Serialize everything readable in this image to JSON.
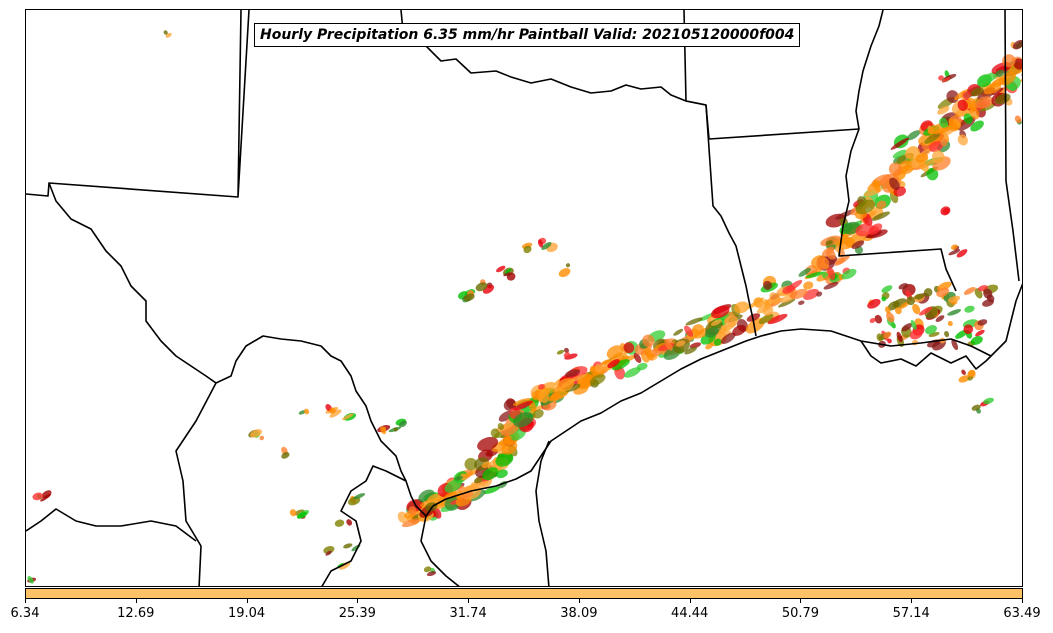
{
  "title": "Hourly Precipitation 6.35 mm/hr Paintball Valid: 202105120000f004",
  "colorbar": {
    "color": "#ffc266",
    "ticks": [
      "6.34",
      "12.69",
      "19.04",
      "25.39",
      "31.74",
      "38.09",
      "44.44",
      "50.79",
      "57.14",
      "63.49"
    ]
  },
  "member_colors": [
    "#ff8c00",
    "#ff7f2a",
    "#ffa53a",
    "#e8000b",
    "#ff3030",
    "#a40000",
    "#8b1a1a",
    "#00c000",
    "#32cd32",
    "#2e8b2e",
    "#808000",
    "#6b6b00"
  ],
  "map": {
    "region": "South-central United States",
    "boundaries": [
      "state-borders",
      "mexico-border",
      "gulf-coastline"
    ]
  }
}
